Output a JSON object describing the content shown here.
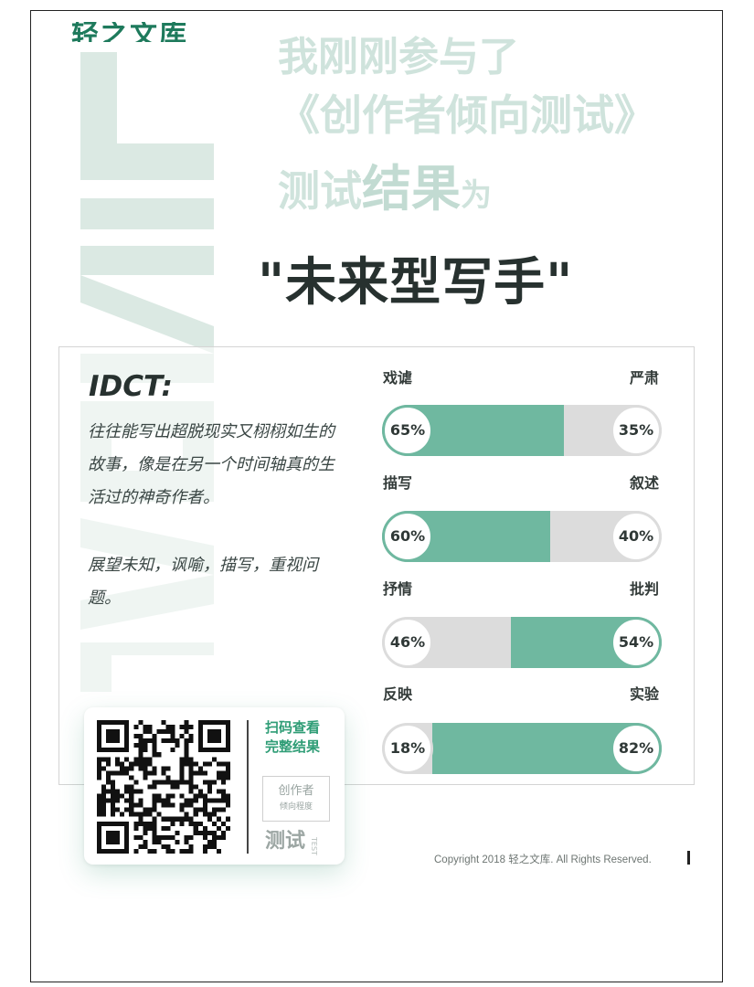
{
  "header": {
    "brand_cut": "轻之文库",
    "line1": "我刚刚参与了",
    "line2": "《创作者倾向测试》",
    "line3_a": "测试",
    "line3_b": "结果",
    "line3_c": "为"
  },
  "result": {
    "type_title": "\"未来型写手\""
  },
  "description": {
    "code": "IDCT:",
    "text1": "往往能写出超脱现实又栩栩如生的故事，像是在另一个时间轴真的生活过的神奇作者。",
    "text2": "展望未知，讽喻，描写，重视问题。"
  },
  "chart_data": {
    "type": "bar",
    "dimensions": [
      {
        "left_label": "戏谑",
        "right_label": "严肃",
        "left_value": 65,
        "right_value": 35,
        "left_text": "65%",
        "right_text": "35%"
      },
      {
        "left_label": "描写",
        "right_label": "叙述",
        "left_value": 60,
        "right_value": 40,
        "left_text": "60%",
        "right_text": "40%"
      },
      {
        "left_label": "抒情",
        "right_label": "批判",
        "left_value": 46,
        "right_value": 54,
        "left_text": "46%",
        "right_text": "54%"
      },
      {
        "left_label": "反映",
        "right_label": "实验",
        "left_value": 18,
        "right_value": 82,
        "left_text": "18%",
        "right_text": "82%"
      }
    ]
  },
  "qr": {
    "scan_line1": "扫码查看",
    "scan_line2": "完整结果",
    "stamp_line1": "创作者",
    "stamp_line2": "倾向程度",
    "test_word": "测试",
    "test_small": "TEST"
  },
  "footer": {
    "copyright": "Copyright 2018 轻之文库. All Rights Reserved."
  },
  "colors": {
    "accent": "#6fb8a0",
    "track": "#dcdcdc",
    "watermark": "#dbe9e3"
  }
}
